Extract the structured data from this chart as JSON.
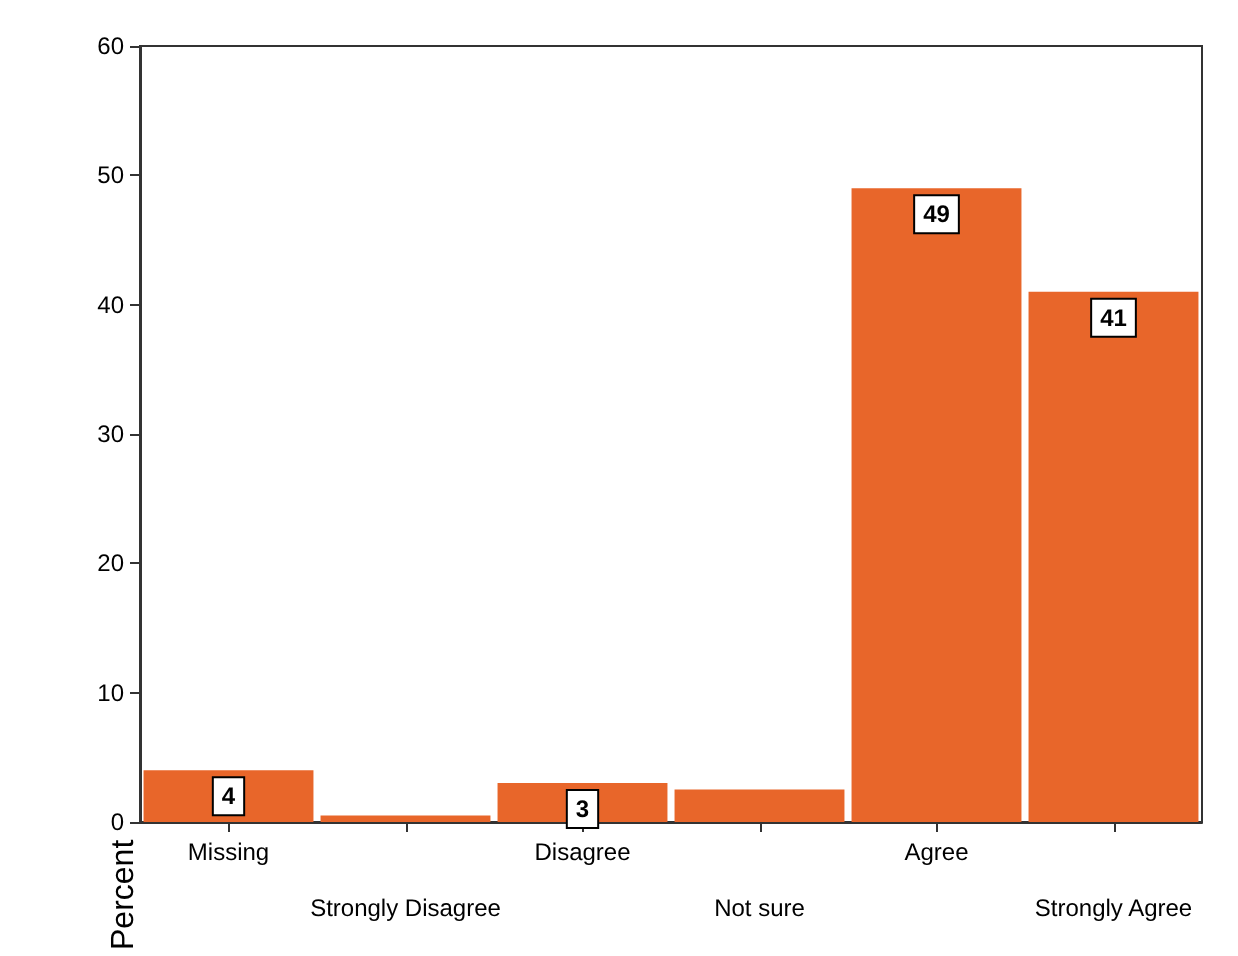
{
  "chart_data": {
    "type": "bar",
    "ylabel": "Percent",
    "categories": [
      "Missing",
      "Strongly Disagree",
      "Disagree",
      "Not sure",
      "Agree",
      "Strongly Agree"
    ],
    "values": [
      4,
      0.5,
      3,
      2.5,
      49,
      41
    ],
    "value_labels": [
      "4",
      null,
      "3",
      null,
      "49",
      "41"
    ],
    "color": "#e8662a",
    "ylim": [
      0,
      60
    ],
    "yticks": [
      0,
      10,
      20,
      30,
      40,
      50,
      60
    ],
    "grid": false
  }
}
